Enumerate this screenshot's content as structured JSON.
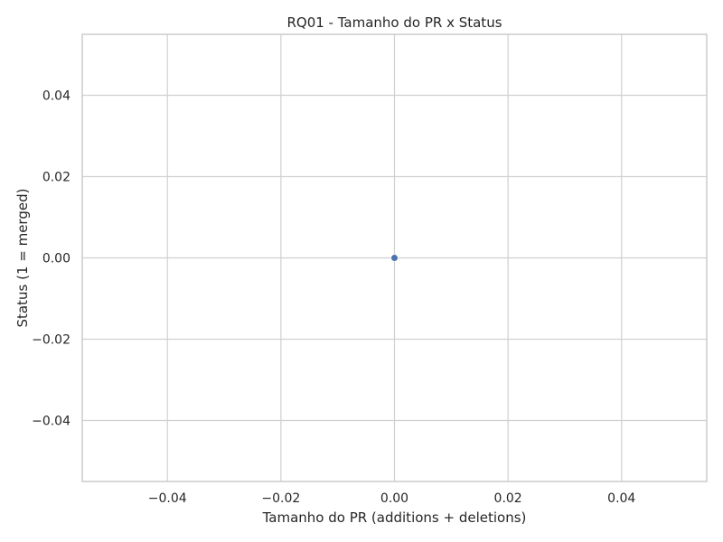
{
  "chart_data": {
    "type": "scatter",
    "title": "RQ01 - Tamanho do PR x Status",
    "xlabel": "Tamanho do PR (additions + deletions)",
    "ylabel": "Status (1 = merged)",
    "xlim": [
      -0.055,
      0.055
    ],
    "ylim": [
      -0.055,
      0.055
    ],
    "x_ticks": [
      -0.04,
      -0.02,
      0.0,
      0.02,
      0.04
    ],
    "x_tick_labels": [
      "−0.04",
      "−0.02",
      "0.00",
      "0.02",
      "0.04"
    ],
    "y_ticks": [
      0.04,
      0.02,
      0.0,
      -0.02,
      -0.04
    ],
    "y_tick_labels": [
      "0.04",
      "0.02",
      "0.00",
      "−0.02",
      "−0.04"
    ],
    "grid": true,
    "points": [
      {
        "x": 0,
        "y": 0
      }
    ],
    "point_color": "#4c72b0",
    "grid_color": "#d0d0d0",
    "frame_color": "#cccccc",
    "text_color": "#262626"
  }
}
